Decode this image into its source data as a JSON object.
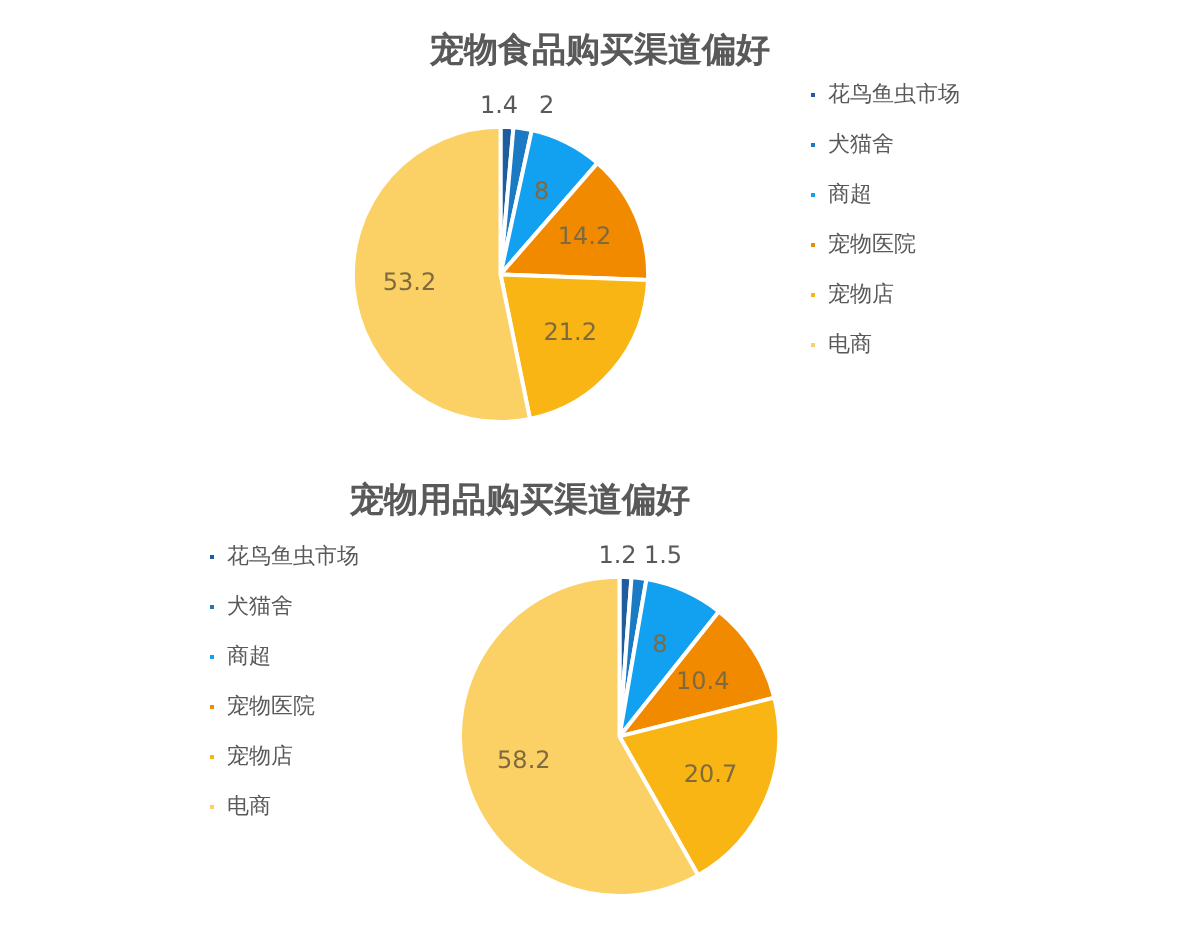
{
  "chart_data": [
    {
      "type": "pie",
      "title": "宠物食品购买渠道偏好",
      "categories": [
        "花鸟鱼虫市场",
        "犬猫舍",
        "商超",
        "宠物医院",
        "宠物店",
        "电商"
      ],
      "values": [
        1.4,
        2,
        8,
        14.2,
        21.2,
        53.2
      ],
      "colors": [
        "#1f5c9e",
        "#1b7ac4",
        "#12a0f0",
        "#f28a00",
        "#f9b514",
        "#fbd166"
      ],
      "data_labels": true,
      "legend": "right"
    },
    {
      "type": "pie",
      "title": "宠物用品购买渠道偏好",
      "categories": [
        "花鸟鱼虫市场",
        "犬猫舍",
        "商超",
        "宠物医院",
        "宠物店",
        "电商"
      ],
      "values": [
        1.2,
        1.5,
        8,
        10.4,
        20.7,
        58.2
      ],
      "colors": [
        "#1f5c9e",
        "#1b7ac4",
        "#12a0f0",
        "#f28a00",
        "#f9b514",
        "#fbd166"
      ],
      "data_labels": true,
      "legend": "left"
    }
  ]
}
